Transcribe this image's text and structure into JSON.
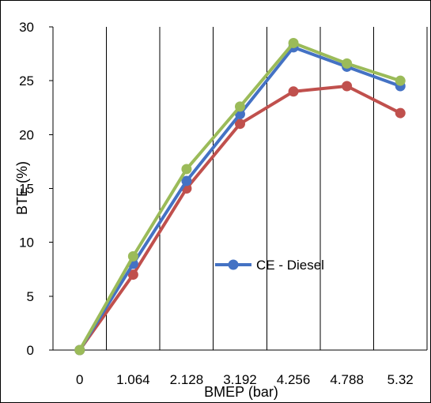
{
  "chart_data": {
    "type": "line",
    "title": "",
    "xlabel": "BMEP (bar)",
    "ylabel": "BTE (%)",
    "categories": [
      "0",
      "1.064",
      "2.128",
      "3.192",
      "4.256",
      "4.788",
      "5.32"
    ],
    "y_ticks": [
      "0",
      "5",
      "10",
      "15",
      "20",
      "25",
      "30"
    ],
    "ylim": [
      0,
      30
    ],
    "grid": "vertical",
    "legend": "center",
    "series": [
      {
        "name": "CE - Diesel",
        "color": "#4472C4",
        "values": [
          0,
          8.0,
          15.7,
          21.9,
          28.1,
          26.3,
          24.5
        ]
      },
      {
        "name": "",
        "color": "#C0504D",
        "values": [
          0,
          7.0,
          15.0,
          21.0,
          24.0,
          24.5,
          22.0
        ]
      },
      {
        "name": "",
        "color": "#9BBB59",
        "values": [
          0,
          8.7,
          16.8,
          22.6,
          28.5,
          26.6,
          25.0
        ]
      }
    ]
  }
}
